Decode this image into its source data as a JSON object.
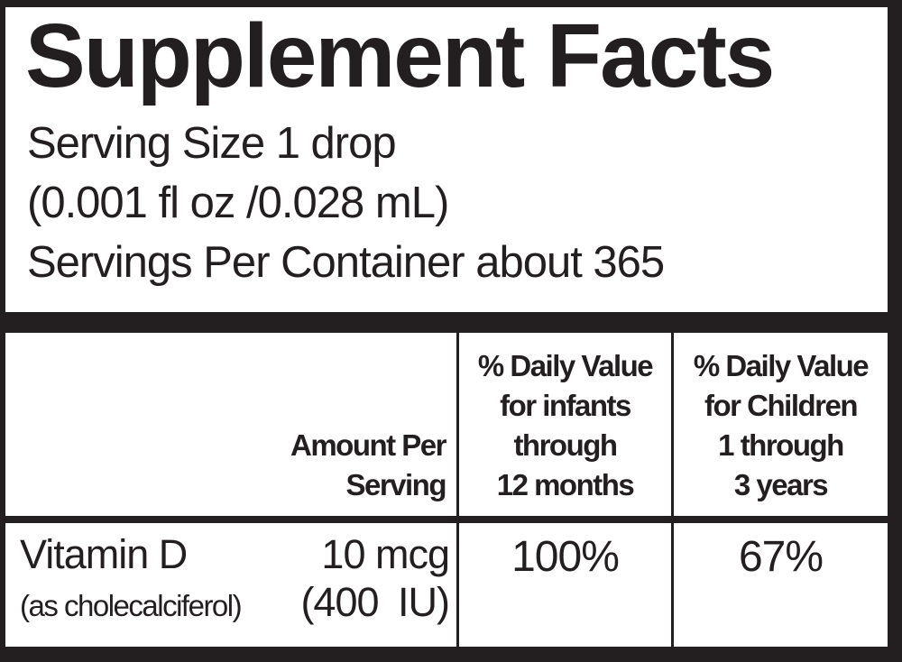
{
  "top": {
    "title": "Supplement Facts",
    "lines": [
      "Serving Size 1 drop",
      "(0.001 fl oz /0.028 mL)",
      "Servings Per Container about 365"
    ]
  },
  "table": {
    "columns": [
      {
        "header_lines": [
          "Amount Per",
          "Serving"
        ]
      },
      {
        "header_lines": [
          "% Daily Value",
          "for infants",
          "through",
          "12 months"
        ]
      },
      {
        "header_lines": [
          "% Daily Value",
          "for Children",
          "1 through",
          "3 years"
        ]
      }
    ],
    "rows": [
      {
        "nutrient": "Vitamin D",
        "form": "(as cholecalciferol)",
        "amount": "10 mcg",
        "amount_iu": "(400 IU)",
        "dv_infants": "100%",
        "dv_children": "67%"
      }
    ]
  },
  "colors": {
    "background": "#231f20",
    "panel": "#ffffff",
    "ink": "#231f20"
  }
}
